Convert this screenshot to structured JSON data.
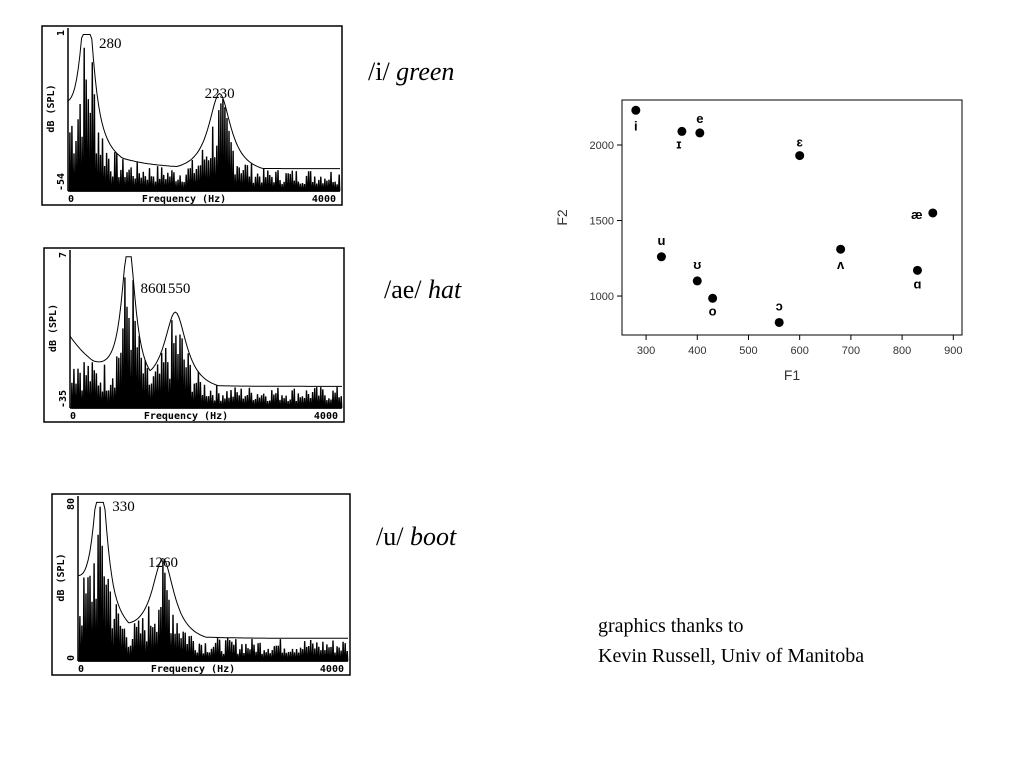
{
  "spectra": [
    {
      "vowel": "/i/",
      "word": "green",
      "peaks": [
        280,
        2230
      ],
      "y_top": "1",
      "y_bottom": "-54",
      "y_label": "dB (SPL)",
      "x_start": "0",
      "x_label": "Frequency (Hz)",
      "x_end": "4000"
    },
    {
      "vowel": "/ae/",
      "word": "hat",
      "peaks": [
        860,
        1550
      ],
      "y_top": "7",
      "y_bottom": "-35",
      "y_label": "dB (SPL)",
      "x_start": "0",
      "x_label": "Frequency (Hz)",
      "x_end": "4000"
    },
    {
      "vowel": "/u/",
      "word": "boot",
      "peaks": [
        330,
        1260
      ],
      "y_top": "80",
      "y_bottom": "0",
      "y_label": "dB (SPL)",
      "x_start": "0",
      "x_label": "Frequency (Hz)",
      "x_end": "4000"
    }
  ],
  "chart_data": {
    "type": "scatter",
    "x_label": "F1",
    "y_label": "F2",
    "color": "#000000",
    "labels": [
      "i",
      "ɪ",
      "e",
      "ɛ",
      "u",
      "ʊ",
      "o",
      "ɔ",
      "ʌ",
      "æ",
      "ɑ"
    ],
    "x": [
      280,
      370,
      405,
      600,
      330,
      400,
      430,
      560,
      680,
      860,
      830
    ],
    "values": [
      2230,
      2090,
      2080,
      1930,
      1260,
      1100,
      985,
      825,
      1310,
      1550,
      1170
    ],
    "xlim": [
      253,
      917
    ],
    "ylim": [
      742,
      2298
    ],
    "xticks": [
      300,
      400,
      500,
      600,
      700,
      800,
      900
    ],
    "yticks": [
      1000,
      1500,
      2000
    ]
  },
  "credit": [
    "graphics thanks to",
    "Kevin Russell, Univ of Manitoba"
  ]
}
